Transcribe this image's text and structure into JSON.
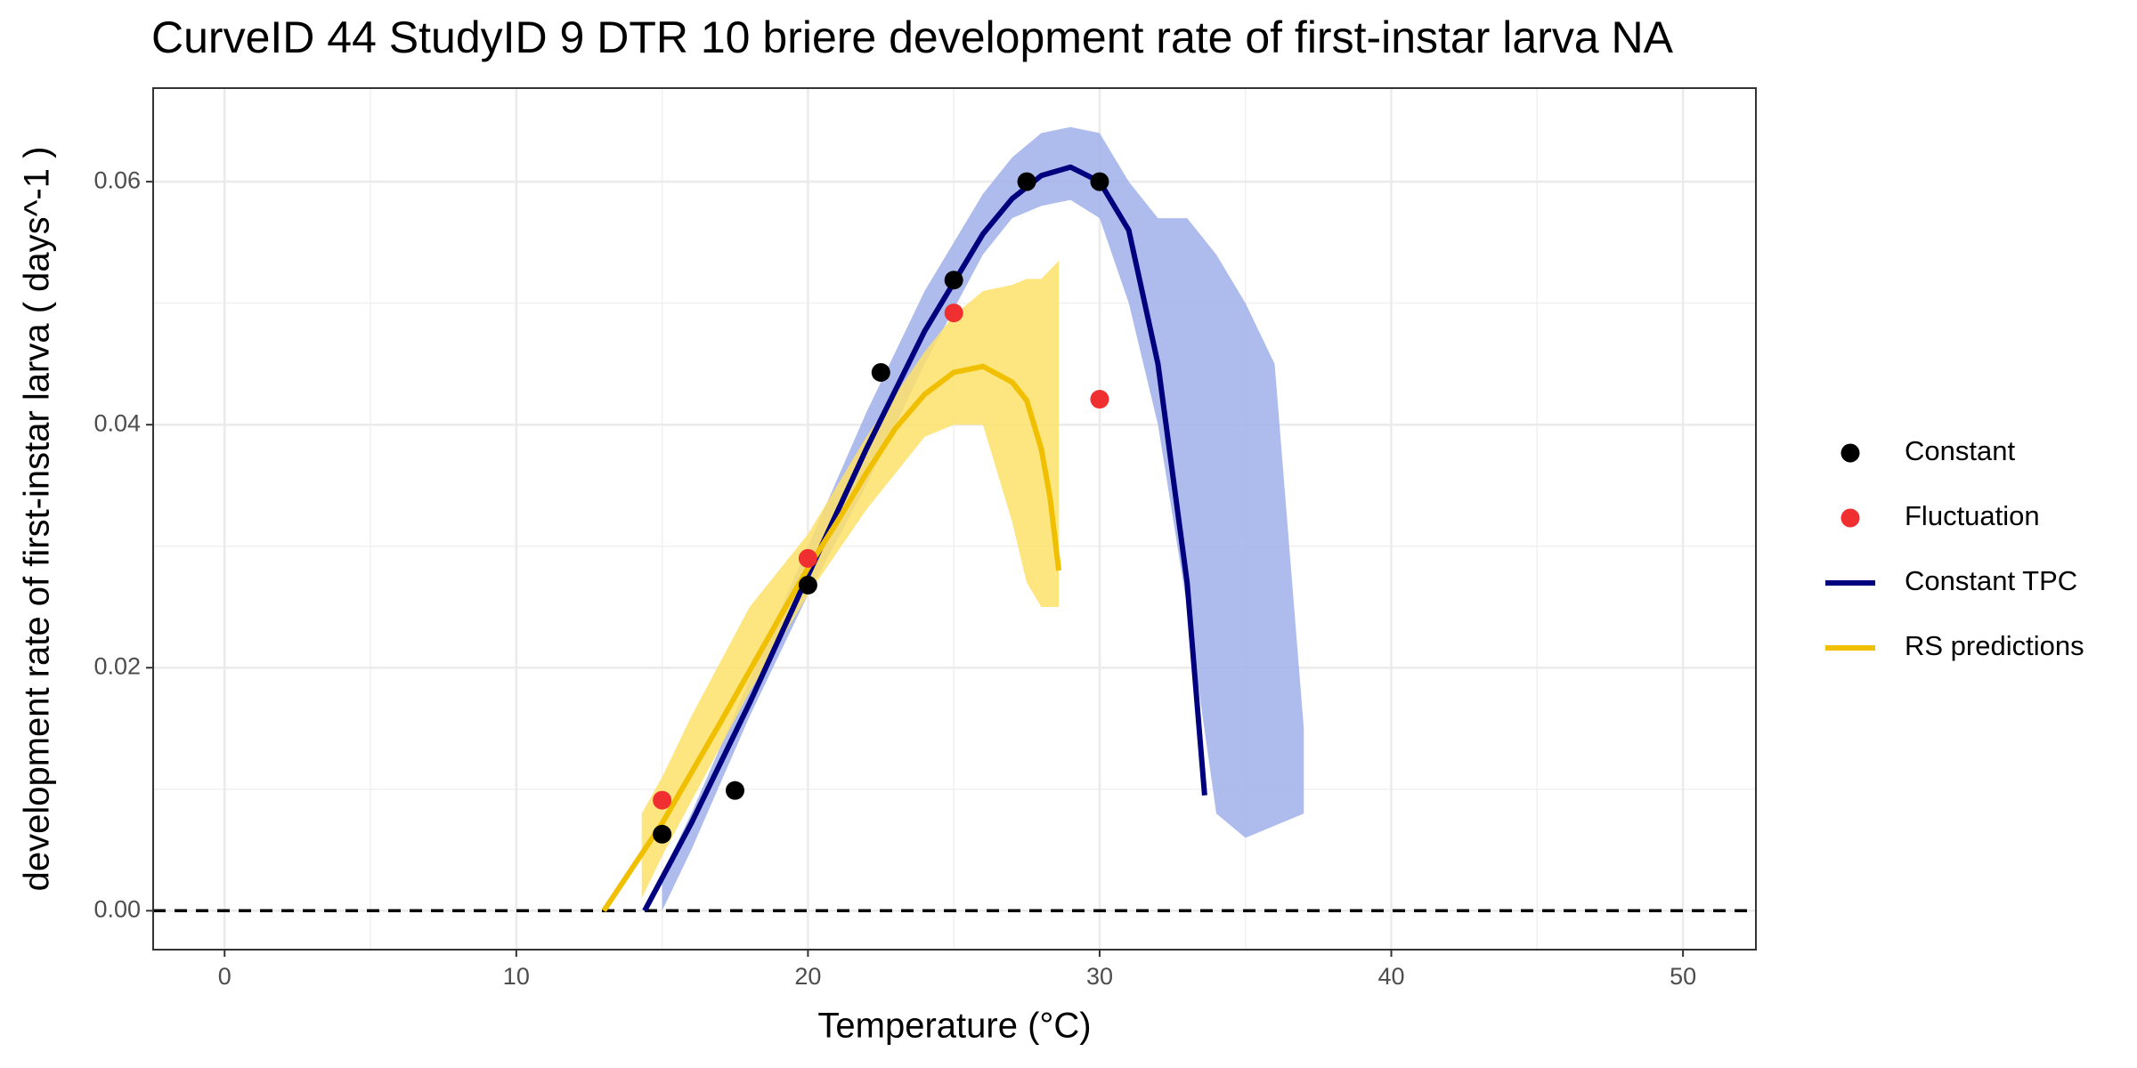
{
  "chart_data": {
    "type": "line",
    "title": "CurveID 44 StudyID 9 DTR 10 briere development rate of first-instar larva NA",
    "x_label": "Temperature (°C)",
    "y_label": "development rate of first-instar larva ( days^-1 )",
    "xlim": [
      -2.45,
      52.5
    ],
    "ylim": [
      -0.0032,
      0.0677
    ],
    "xticks": [
      0,
      10,
      20,
      30,
      40,
      50
    ],
    "yticks": [
      {
        "value": 0,
        "label": "0.00"
      },
      0.02,
      0.04,
      0.06
    ],
    "grid": true,
    "hline": 0,
    "legend": "right",
    "bands": [
      {
        "color": "#a0b0ea",
        "x": [
          15,
          16,
          18,
          20,
          22,
          24,
          26,
          27,
          28,
          29,
          30,
          31,
          32,
          33,
          34,
          35,
          36,
          37
        ],
        "upper": [
          0.003,
          0.008,
          0.019,
          0.03,
          0.041,
          0.051,
          0.059,
          0.062,
          0.064,
          0.0645,
          0.064,
          0.06,
          0.057,
          0.057,
          0.054,
          0.05,
          0.045,
          0.015
        ],
        "lower": [
          0,
          0.005,
          0.016,
          0.026,
          0.035,
          0.045,
          0.054,
          0.057,
          0.058,
          0.0585,
          0.057,
          0.05,
          0.04,
          0.025,
          0.008,
          0.006,
          0.007,
          0.008
        ]
      },
      {
        "color": "#fde16a",
        "x": [
          14.3,
          15,
          16,
          18,
          20,
          22,
          24,
          25,
          26,
          27,
          27.5,
          28,
          28.6
        ],
        "upper": [
          0.008,
          0.011,
          0.016,
          0.025,
          0.031,
          0.039,
          0.046,
          0.049,
          0.051,
          0.0515,
          0.052,
          0.052,
          0.0535
        ],
        "lower": [
          0.001,
          0.0045,
          0.009,
          0.018,
          0.026,
          0.033,
          0.039,
          0.04,
          0.04,
          0.032,
          0.027,
          0.025,
          0.025
        ]
      }
    ],
    "series": [
      {
        "name": "Constant",
        "mode": "points",
        "color": "#000000",
        "x": [
          15,
          17.5,
          20,
          22.5,
          25,
          27.5,
          30
        ],
        "values": [
          0.0063,
          0.0099,
          0.0268,
          0.0443,
          0.0519,
          0.06,
          0.06
        ]
      },
      {
        "name": "Fluctuation",
        "mode": "points",
        "color": "#f03030",
        "x": [
          15,
          20,
          25,
          30
        ],
        "values": [
          0.0091,
          0.029,
          0.0492,
          0.0421
        ]
      },
      {
        "name": "Constant TPC",
        "mode": "line",
        "color": "#00007f",
        "x": [
          14.4,
          16,
          18,
          20,
          22,
          24,
          26,
          27,
          28,
          29,
          30,
          31,
          32,
          33,
          33.6
        ],
        "values": [
          0,
          0.0072,
          0.0171,
          0.0276,
          0.038,
          0.0477,
          0.0557,
          0.0586,
          0.0605,
          0.0612,
          0.06,
          0.056,
          0.045,
          0.027,
          0.0095
        ]
      },
      {
        "name": "RS predictions",
        "mode": "line",
        "color": "#f0c000",
        "x": [
          13,
          15,
          17,
          19,
          20,
          21,
          22,
          23,
          24,
          25,
          26,
          27,
          27.5,
          28,
          28.3,
          28.6
        ],
        "values": [
          0,
          0.0072,
          0.0155,
          0.024,
          0.0282,
          0.032,
          0.036,
          0.0397,
          0.0425,
          0.0443,
          0.0448,
          0.0435,
          0.042,
          0.038,
          0.034,
          0.028
        ]
      }
    ]
  }
}
